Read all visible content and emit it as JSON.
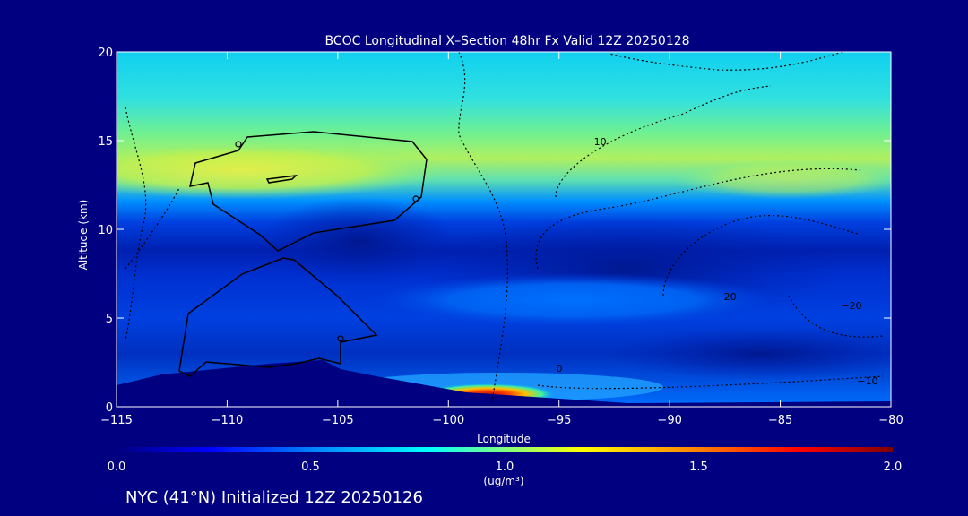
{
  "chart_data": {
    "type": "heatmap",
    "title": "BCOC Longitudinal X–Section 48hr  Fx Valid 12Z 20250128",
    "xlabel": "Longitude",
    "ylabel": "Altitude (km)",
    "xlim": [
      -115,
      -80
    ],
    "ylim": [
      0,
      20
    ],
    "x_ticks": [
      "−115",
      "−110",
      "−105",
      "−100",
      "−95",
      "−90",
      "−85",
      "−80"
    ],
    "y_ticks": [
      "0",
      "5",
      "10",
      "15",
      "20"
    ],
    "colorbar": {
      "min": 0.0,
      "max": 2.0,
      "ticks": [
        "0.0",
        "0.5",
        "1.0",
        "1.5",
        "2.0"
      ],
      "unit_label": "(ug/m³)",
      "colors": [
        "#000080",
        "#0000ff",
        "#0080ff",
        "#00ffff",
        "#80ff80",
        "#ffff00",
        "#ff8000",
        "#ff0000",
        "#800000"
      ]
    },
    "contour_labels": [
      "−10",
      "−20",
      "−20",
      "−10",
      "0"
    ],
    "features": [
      {
        "name": "upper BC layer",
        "lon_range": [
          -115,
          -80
        ],
        "alt_km": 13.5,
        "peak_value": 1.1
      },
      {
        "name": "surface plume",
        "lon_range": [
          -105,
          -80
        ],
        "alt_km": 0.7,
        "peak_value": 2.0
      }
    ]
  },
  "footer": {
    "caption": "NYC (41°N) Initialized 12Z 20250126"
  }
}
